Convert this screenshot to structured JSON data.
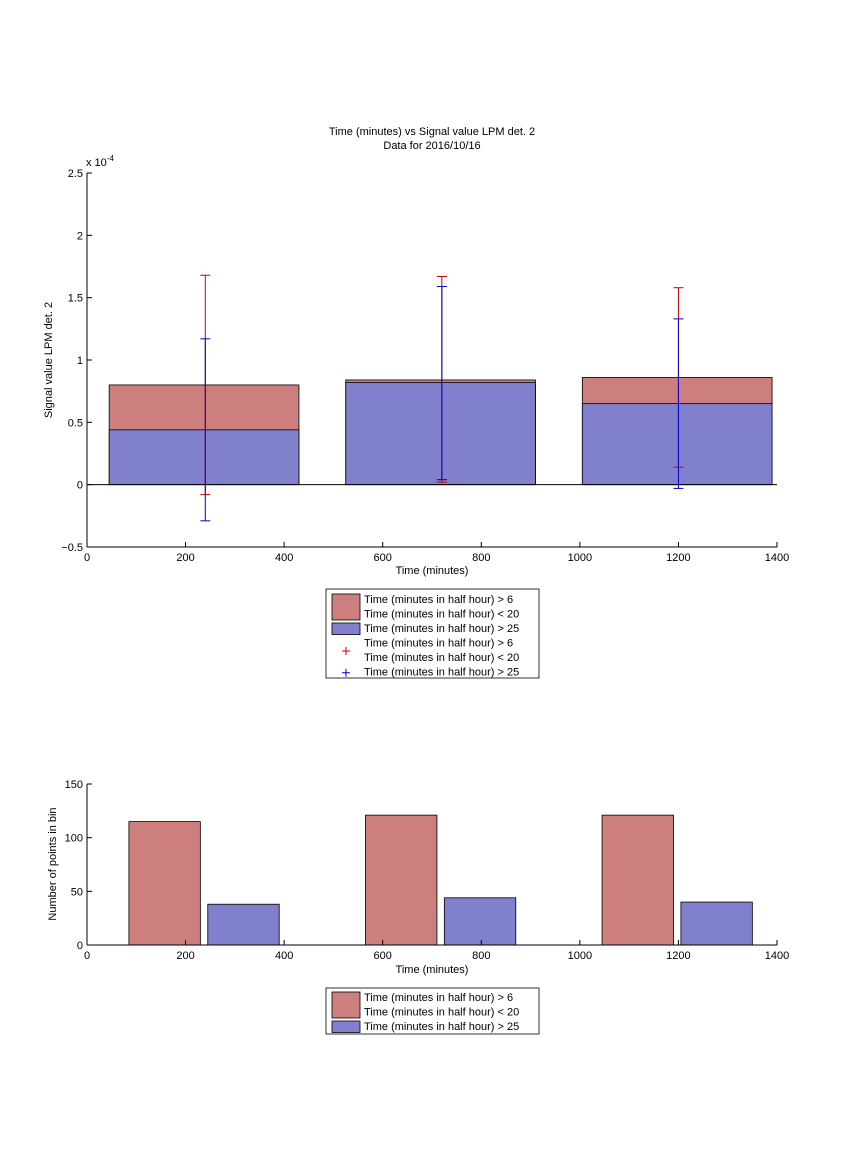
{
  "colors": {
    "series1": "#cc7f7d",
    "series2": "#8080cc",
    "err1": "#cc0000",
    "err2": "#0000cc"
  },
  "chart_data": [
    {
      "type": "bar",
      "title": "Time (minutes) vs Signal value LPM det. 2",
      "subtitle": "Data for 2016/10/16",
      "xlabel": "Time (minutes)",
      "ylabel": "Signal value LPM det. 2",
      "y_exponent_label": "x 10",
      "y_exponent_power": "-4",
      "xlim": [
        0,
        1400
      ],
      "ylim": [
        -0.5,
        2.5
      ],
      "xticks": [
        "0",
        "200",
        "400",
        "600",
        "800",
        "1000",
        "1200",
        "1400"
      ],
      "yticks": [
        "-0.5",
        "0",
        "0.5",
        "1",
        "1.5",
        "2",
        "2.5"
      ],
      "bars": [
        {
          "x0": 45,
          "x1": 430,
          "series1": 0.8,
          "series2": 0.44
        },
        {
          "x0": 525,
          "x1": 910,
          "series1": 0.84,
          "series2": 0.82
        },
        {
          "x0": 1005,
          "x1": 1390,
          "series1": 0.86,
          "series2": 0.65
        }
      ],
      "errorbars": [
        {
          "x": 240,
          "series1": [
            -0.08,
            1.68
          ],
          "series2": [
            -0.29,
            1.17
          ]
        },
        {
          "x": 720,
          "series1": [
            0.02,
            1.67
          ],
          "series2": [
            0.04,
            1.59
          ]
        },
        {
          "x": 1200,
          "series1": [
            0.14,
            1.58
          ],
          "series2": [
            -0.03,
            1.33
          ]
        }
      ],
      "legend": {
        "entries": [
          {
            "kind": "patch",
            "series": "series1",
            "lines": [
              "Time (minutes in half hour) > 6",
              "Time (minutes in half hour) < 20"
            ]
          },
          {
            "kind": "patch",
            "series": "series2",
            "lines": [
              "Time (minutes in half hour) > 25"
            ]
          },
          {
            "kind": "marker",
            "series": "err1",
            "lines": [
              "Time (minutes in half hour) > 6",
              "Time (minutes in half hour) < 20"
            ]
          },
          {
            "kind": "marker",
            "series": "err2",
            "lines": [
              "Time (minutes in half hour) > 25"
            ]
          }
        ]
      }
    },
    {
      "type": "bar",
      "xlabel": "Time (minutes)",
      "ylabel": "Number of points in bin",
      "xlim": [
        0,
        1400
      ],
      "ylim": [
        0,
        150
      ],
      "xticks": [
        "0",
        "200",
        "400",
        "600",
        "800",
        "1000",
        "1200",
        "1400"
      ],
      "yticks": [
        "0",
        "50",
        "100",
        "150"
      ],
      "bars": [
        {
          "series": "series1",
          "x0": 85,
          "x1": 230,
          "value": 115
        },
        {
          "series": "series2",
          "x0": 245,
          "x1": 390,
          "value": 38
        },
        {
          "series": "series1",
          "x0": 565,
          "x1": 710,
          "value": 121
        },
        {
          "series": "series2",
          "x0": 725,
          "x1": 870,
          "value": 44
        },
        {
          "series": "series1",
          "x0": 1045,
          "x1": 1190,
          "value": 121
        },
        {
          "series": "series2",
          "x0": 1205,
          "x1": 1350,
          "value": 40
        }
      ],
      "legend": {
        "entries": [
          {
            "kind": "patch",
            "series": "series1",
            "lines": [
              "Time (minutes in half hour) > 6",
              "Time (minutes in half hour) < 20"
            ]
          },
          {
            "kind": "patch",
            "series": "series2",
            "lines": [
              "Time (minutes in half hour) > 25"
            ]
          }
        ]
      }
    }
  ]
}
